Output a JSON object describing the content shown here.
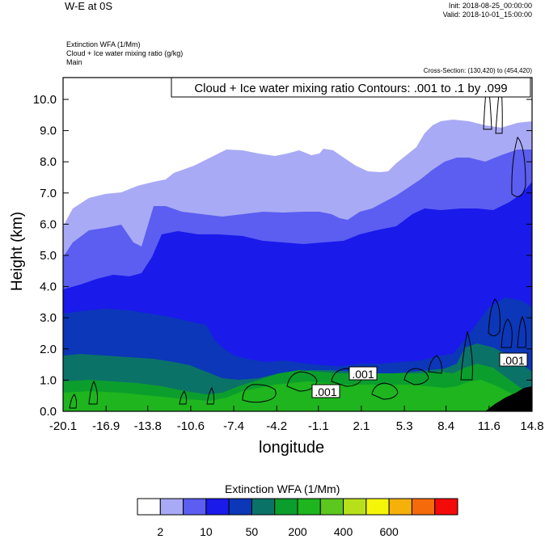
{
  "header": {
    "title": "W-E at 0S",
    "init": "Init: 2018-08-25_00:00:00",
    "valid": "Valid: 2018-10-01_15:00:00",
    "subtitle_lines": [
      "Extinction WFA   (1/Mm)",
      "Cloud + Ice water mixing ratio   (g/kg)",
      "Main"
    ],
    "cross_section": "Cross-Section: (130,420) to (454,420)"
  },
  "chart_data": {
    "type": "heatmap",
    "description_box": "Cloud + Ice water mixing ratio Contours: .001 to .1 by .099",
    "xlabel": "longitude",
    "ylabel": "Height (km)",
    "x_ticks": [
      "-20.1",
      "-16.9",
      "-13.8",
      "-10.6",
      "-7.4",
      "-4.2",
      "-1.1",
      "2.1",
      "5.3",
      "8.4",
      "11.6",
      "14.8"
    ],
    "y_ticks": [
      "0.0",
      "1.0",
      "2.0",
      "3.0",
      "4.0",
      "5.0",
      "6.0",
      "7.0",
      "8.0",
      "9.0",
      "10.0"
    ],
    "xlim": [
      -20.1,
      14.8
    ],
    "ylim": [
      0,
      10.7
    ],
    "contour_labels": [
      ".001",
      ".001",
      ".001"
    ],
    "colorbar": {
      "title": "Extinction WFA  (1/Mm)",
      "colors": [
        "#ffffff",
        "#a9aaf5",
        "#5b5ef0",
        "#1a1aeb",
        "#0b37b8",
        "#0b7268",
        "#0c9e2d",
        "#1eb51e",
        "#5cc71c",
        "#b8e01a",
        "#f5f50a",
        "#f5b00a",
        "#f56a0a",
        "#f50a0a"
      ],
      "tick_labels": [
        "2",
        "10",
        "50",
        "200",
        "400",
        "600"
      ]
    }
  }
}
